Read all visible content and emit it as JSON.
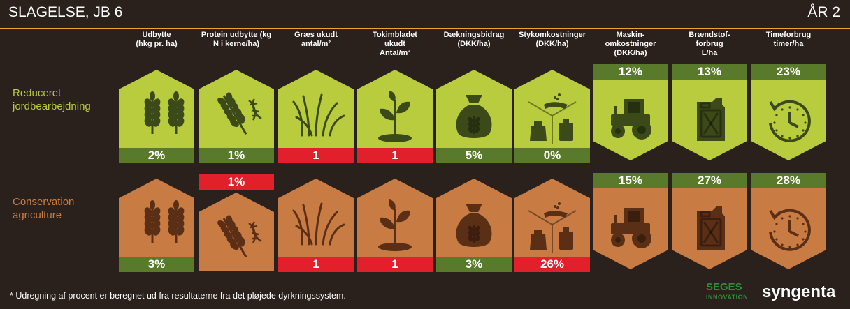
{
  "header": {
    "title": "SLAGELSE, JB 6",
    "year": "ÅR 2"
  },
  "columns": [
    {
      "label_line1": "Udbytte",
      "label_line2": "(hkg pr. ha)",
      "label_line3": ""
    },
    {
      "label_line1": "Protein udbytte (kg",
      "label_line2": "N i kerne/ha)",
      "label_line3": ""
    },
    {
      "label_line1": "Græs ukudt",
      "label_line2": "antal/m²",
      "label_line3": ""
    },
    {
      "label_line1": "Tokimbladet",
      "label_line2": "ukudt",
      "label_line3": "Antal/m²"
    },
    {
      "label_line1": "Dækningsbidrag",
      "label_line2": "(DKK/ha)",
      "label_line3": ""
    },
    {
      "label_line1": "Stykomkostninger",
      "label_line2": "(DKK/ha)",
      "label_line3": ""
    },
    {
      "label_line1": "Maskin-",
      "label_line2": "omkostninger",
      "label_line3": "(DKK/ha)"
    },
    {
      "label_line1": "Brændstof-",
      "label_line2": "forbrug",
      "label_line3": "L/ha"
    },
    {
      "label_line1": "Timeforbrug",
      "label_line2": "timer/ha",
      "label_line3": ""
    }
  ],
  "rows": [
    {
      "label_line1": "Reduceret",
      "label_line2": "jordbearbejdning",
      "values": [
        "2%",
        "1%",
        "1",
        "1",
        "5%",
        "0%",
        "12%",
        "13%",
        "23%"
      ]
    },
    {
      "label_line1": "Conservation",
      "label_line2": "agriculture",
      "values": [
        "3%",
        "1%",
        "1",
        "1",
        "3%",
        "26%",
        "15%",
        "27%",
        "28%"
      ]
    }
  ],
  "icons": [
    "wheat-icon",
    "wheat-dna-icon",
    "grass-icon",
    "seedling-icon",
    "money-bag-icon",
    "inputs-icon",
    "tractor-icon",
    "jerrycan-icon",
    "clock-icon"
  ],
  "colors": {
    "row1": "#b8cc3d",
    "row2": "#c87c43",
    "positive": "#5a7a2b",
    "negative": "#e2202c",
    "background": "#2a211c",
    "accent": "#e8a33a"
  },
  "footer": {
    "note": "* Udregning af procent er beregnet ud fra resultaterne fra det pløjede dyrkningssystem."
  },
  "logos": {
    "seges": "SEGES",
    "seges_sub": "INNOVATION",
    "syngenta": "syngenta"
  }
}
